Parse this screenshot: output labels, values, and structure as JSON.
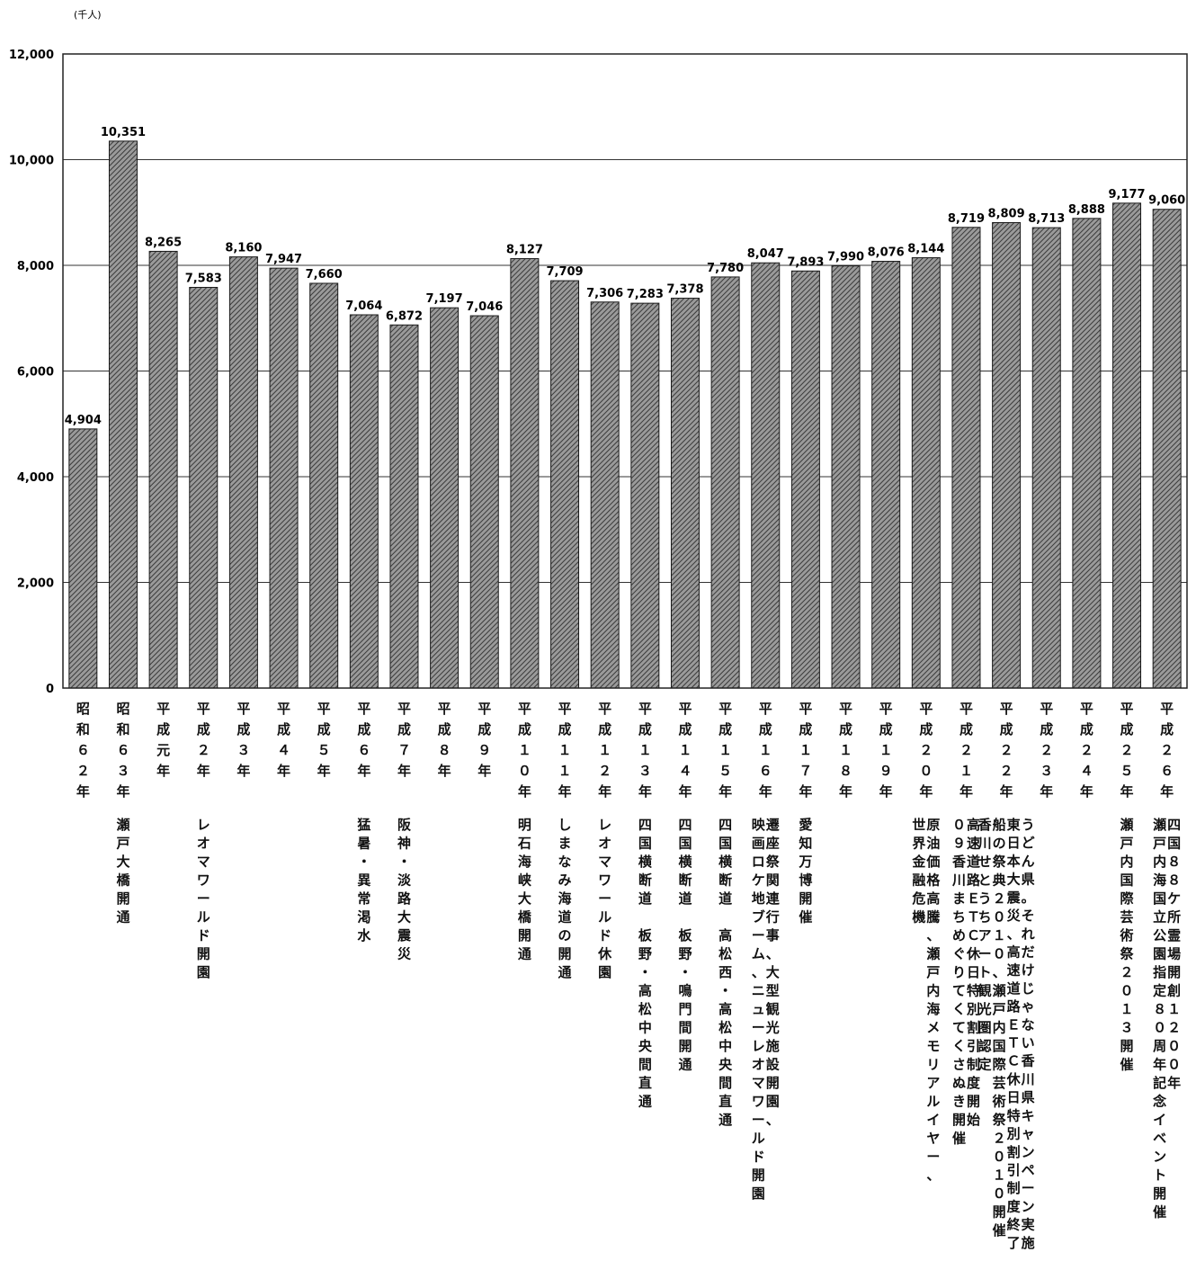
{
  "chart_data": {
    "type": "bar",
    "unit_label": "(千人)",
    "ylim": [
      0,
      12000
    ],
    "yticks": [
      "0",
      "2,000",
      "4,000",
      "6,000",
      "8,000",
      "10,000",
      "12,000"
    ],
    "ytick_values": [
      0,
      2000,
      4000,
      6000,
      8000,
      10000,
      12000
    ],
    "grid": true,
    "bar_color": "#6e6e6e",
    "categories": [
      "昭和６２年",
      "昭和６３年",
      "平成元年",
      "平成２年",
      "平成３年",
      "平成４年",
      "平成５年",
      "平成６年",
      "平成７年",
      "平成８年",
      "平成９年",
      "平成１０年",
      "平成１１年",
      "平成１２年",
      "平成１３年",
      "平成１４年",
      "平成１５年",
      "平成１６年",
      "平成１７年",
      "平成１８年",
      "平成１９年",
      "平成２０年",
      "平成２１年",
      "平成２２年",
      "平成２３年",
      "平成２４年",
      "平成２５年",
      "平成２６年"
    ],
    "values": [
      4904,
      10351,
      8265,
      7583,
      8160,
      7947,
      7660,
      7064,
      6872,
      7197,
      7046,
      8127,
      7709,
      7306,
      7283,
      7378,
      7780,
      8047,
      7893,
      7990,
      8076,
      8144,
      8719,
      8809,
      8713,
      8888,
      9177,
      9060
    ],
    "value_labels": [
      "4,904",
      "10,351",
      "8,265",
      "7,583",
      "8,160",
      "7,947",
      "7,660",
      "7,064",
      "6,872",
      "7,197",
      "7,046",
      "8,127",
      "7,709",
      "7,306",
      "7,283",
      "7,378",
      "7,780",
      "8,047",
      "7,893",
      "7,990",
      "8,076",
      "8,144",
      "8,719",
      "8,809",
      "8,713",
      "8,888",
      "9,177",
      "9,060"
    ],
    "annotations": [
      [],
      [
        "瀬戸大橋開通"
      ],
      [],
      [
        "レオマワールド開園"
      ],
      [],
      [],
      [],
      [
        "猛暑・異常渇水"
      ],
      [
        "阪神・淡路大震災"
      ],
      [],
      [],
      [
        "明石海峡大橋開通"
      ],
      [
        "しまなみ海道の開通"
      ],
      [
        "レオマワールド休園"
      ],
      [
        "四国横断道　板野・高松中央間直通"
      ],
      [
        "四国横断道　板野・鳴門間開通"
      ],
      [
        "四国横断道　高松西・高松中央間直通"
      ],
      [
        "遷座祭関連行事、大型観光施設開園、",
        "映画ロケ地ブーム、ニューレオマワールド開園"
      ],
      [
        "愛知万博開催"
      ],
      [],
      [],
      [
        "原油価格高騰、瀬戸内海メモリアルイヤー、",
        "世界金融危機"
      ],
      [
        "高速道路ＥＴＣ休日特別割引制度開始",
        "０９香川まちめぐりてくてくさぬき開催"
      ],
      [
        "うどん県。それだけじゃない香川県キャンペーン実施",
        "東日本大震災、高速道路ＥＴＣ休日特別割引制度終了",
        "船の祭典２０１０、瀬戸内国際芸術祭２０１０開催",
        "香川せとうちアート観光圏認定"
      ],
      [],
      [],
      [
        "瀬戸内国際芸術祭２０１３開催"
      ],
      [
        "四国８８ケ所霊場開創１２００年",
        "瀬戸内海国立公園指定８０周年記念イベント開催"
      ]
    ]
  }
}
